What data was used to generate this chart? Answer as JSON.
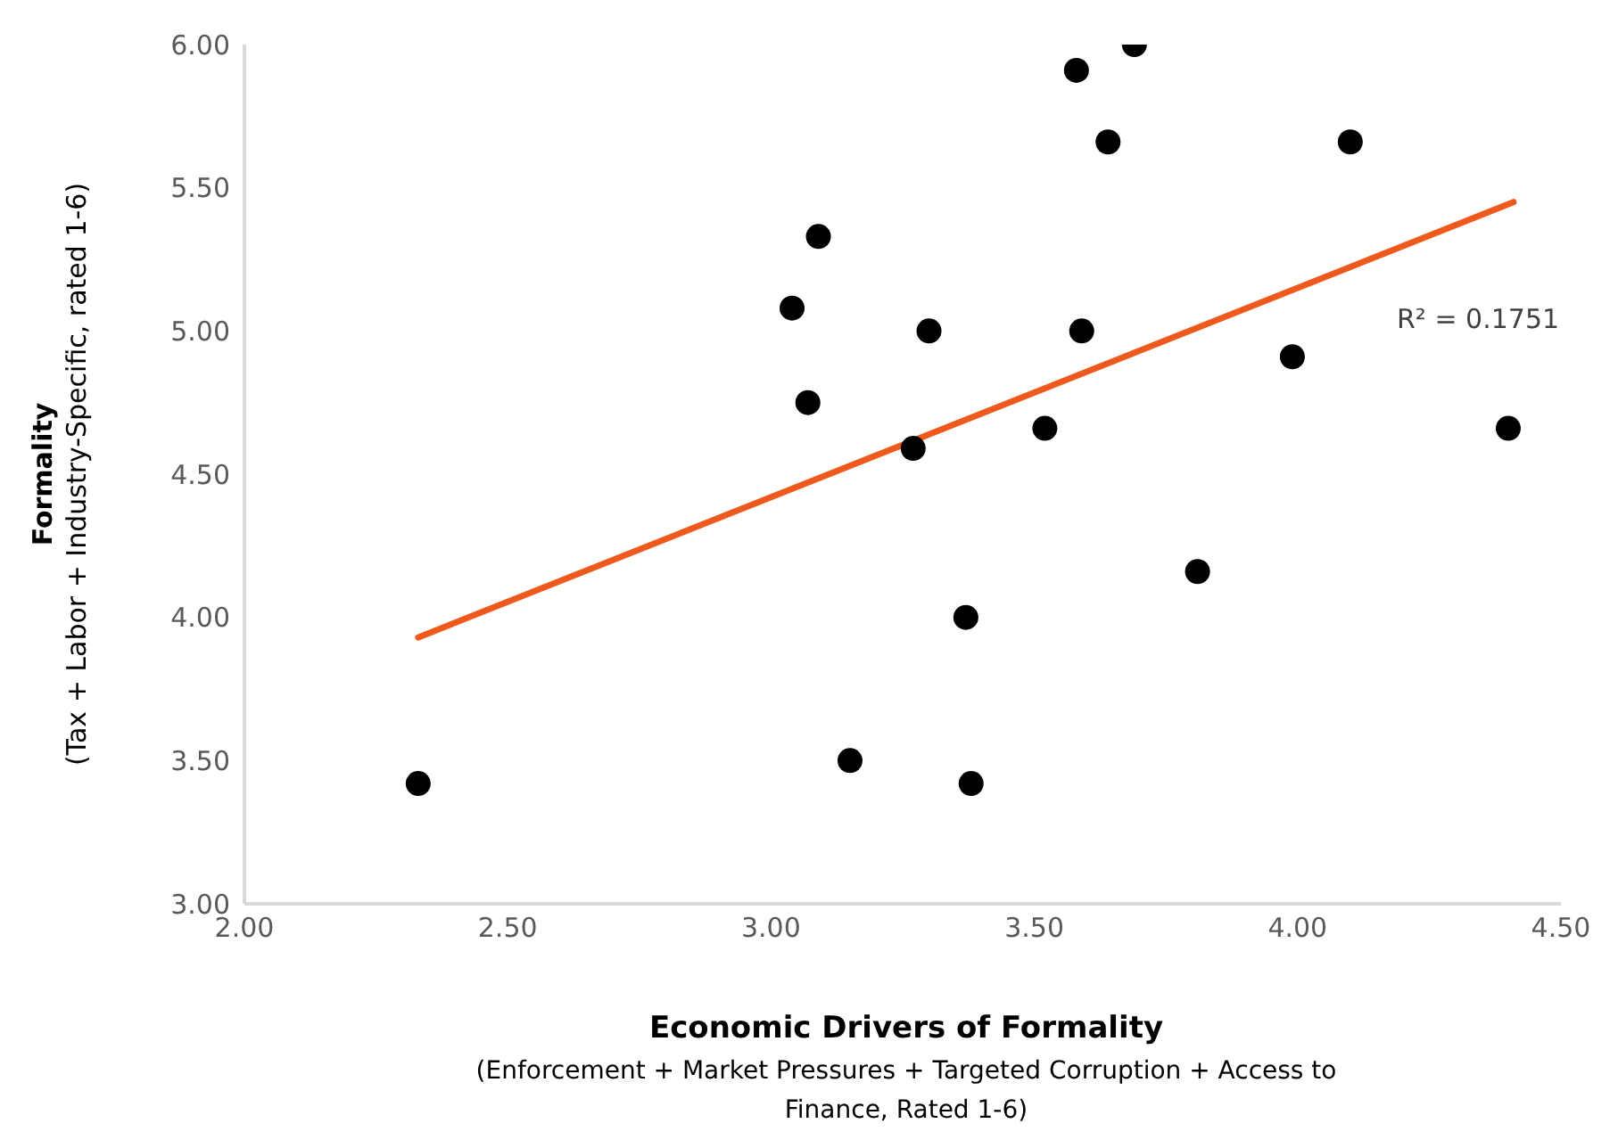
{
  "chart_data": {
    "type": "scatter",
    "xlabel": "Economic Drivers of Formality\n(Enforcement + Market Pressures + Targeted Corruption + Access to Finance, Rated 1-6)",
    "ylabel": "Formality\n(Tax + Labor + Industry-Specific, rated 1-6)",
    "annotations": [
      "R² = 0.1751"
    ],
    "xlim": [
      2,
      4.5
    ],
    "xticks": [
      {
        "value": 2,
        "label": "2.00"
      },
      {
        "value": 2.5,
        "label": "2.50"
      },
      {
        "value": 3,
        "label": "3.00"
      },
      {
        "value": 3.5,
        "label": "3.50"
      },
      {
        "value": 4,
        "label": "4.00"
      },
      {
        "value": 4.5,
        "label": "4.50"
      }
    ],
    "ylim": [
      3,
      6
    ],
    "yticks": [
      {
        "value": 3,
        "label": "3.00"
      },
      {
        "value": 3.5,
        "label": "3.50"
      },
      {
        "value": 4,
        "label": "4.00"
      },
      {
        "value": 4.5,
        "label": "4.50"
      },
      {
        "value": 5,
        "label": "5.00"
      },
      {
        "value": 5.5,
        "label": "5.50"
      },
      {
        "value": 6,
        "label": "6.00"
      }
    ],
    "grid": false,
    "legend": false,
    "marker": "circle",
    "series": [
      {
        "color": "#000000",
        "x": [
          2.33,
          3.04,
          3.07,
          3.09,
          3.15,
          3.27,
          3.3,
          3.37,
          3.38,
          3.52,
          3.58,
          3.59,
          3.64,
          3.69,
          3.81,
          3.99,
          4.1,
          4.4
        ],
        "values": [
          3.42,
          5.08,
          4.75,
          5.33,
          3.5,
          4.59,
          5.0,
          4.0,
          3.42,
          4.66,
          5.91,
          5.0,
          5.66,
          6.0,
          4.16,
          4.91,
          5.66,
          4.66
        ]
      },
      {
        "type": "line",
        "color": "#ee5a1e",
        "marker": "none",
        "line_style": "solid",
        "x": [
          2.33,
          4.41
        ],
        "values": [
          3.93,
          5.45
        ]
      }
    ]
  }
}
